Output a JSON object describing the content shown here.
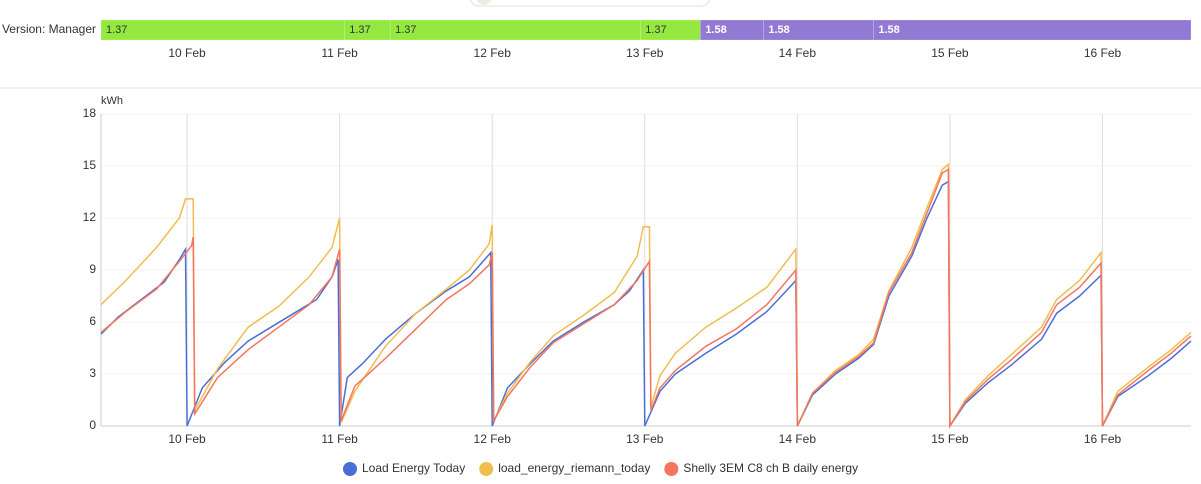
{
  "timeline": {
    "label": "Version: Manager",
    "colors": {
      "1.37": "#95e83f",
      "1.58": "#9279d3"
    },
    "segments": [
      {
        "label": "1.37",
        "start": 9.436,
        "end": 11.03
      },
      {
        "label": "1.37",
        "start": 11.03,
        "end": 11.331
      },
      {
        "label": "1.37",
        "start": 11.331,
        "end": 12.97
      },
      {
        "label": "1.37",
        "start": 12.97,
        "end": 13.364
      },
      {
        "label": "1.58",
        "start": 13.364,
        "end": 13.777
      },
      {
        "label": "1.58",
        "start": 13.777,
        "end": 14.498
      },
      {
        "label": "1.58",
        "start": 14.498,
        "end": 16.58
      }
    ]
  },
  "chart_data": {
    "type": "line",
    "y_label": "kWh",
    "xlim": [
      9.436,
      16.58
    ],
    "ylim": [
      0,
      18
    ],
    "yticks": [
      0,
      3,
      6,
      9,
      12,
      15,
      18
    ],
    "xticks": [
      {
        "value": 10,
        "label": "10 Feb"
      },
      {
        "value": 11,
        "label": "11 Feb"
      },
      {
        "value": 12,
        "label": "12 Feb"
      },
      {
        "value": 13,
        "label": "13 Feb"
      },
      {
        "value": 14,
        "label": "14 Feb"
      },
      {
        "value": 15,
        "label": "15 Feb"
      },
      {
        "value": 16,
        "label": "16 Feb"
      }
    ],
    "grid": true,
    "legend": "bottom",
    "series": [
      {
        "name": "Load Energy Today",
        "color": "#4a6ed6",
        "x": [
          9.436,
          9.55,
          9.7,
          9.85,
          9.95,
          9.99,
          10.0,
          10.1,
          10.25,
          10.4,
          10.55,
          10.7,
          10.85,
          10.95,
          10.99,
          11.0,
          11.05,
          11.15,
          11.3,
          11.5,
          11.7,
          11.85,
          11.99,
          12.0,
          12.1,
          12.25,
          12.4,
          12.6,
          12.8,
          12.9,
          12.99,
          13.0,
          13.1,
          13.2,
          13.4,
          13.6,
          13.8,
          13.95,
          13.99,
          14.0,
          14.1,
          14.25,
          14.4,
          14.5,
          14.6,
          14.75,
          14.85,
          14.95,
          14.99,
          15.0,
          15.1,
          15.25,
          15.4,
          15.6,
          15.7,
          15.85,
          15.99,
          16.0,
          16.1,
          16.3,
          16.45,
          16.58
        ],
        "values": [
          5.3,
          6.3,
          7.3,
          8.3,
          9.6,
          10.2,
          0,
          2.2,
          3.7,
          4.9,
          5.7,
          6.5,
          7.3,
          8.6,
          9.6,
          0,
          2.8,
          3.6,
          5.0,
          6.5,
          7.8,
          8.6,
          10.0,
          0,
          2.2,
          3.6,
          4.9,
          6.0,
          7.0,
          7.8,
          9.0,
          0,
          2.0,
          3.0,
          4.2,
          5.3,
          6.6,
          8.0,
          8.4,
          0,
          1.8,
          3.0,
          3.9,
          4.7,
          7.5,
          9.8,
          12.0,
          13.9,
          14.1,
          0,
          1.3,
          2.5,
          3.5,
          5.0,
          6.5,
          7.5,
          8.7,
          0,
          1.7,
          2.9,
          3.9,
          4.9
        ]
      },
      {
        "name": "load_energy_riemann_today",
        "color": "#f0bd50",
        "x": [
          9.436,
          9.6,
          9.8,
          9.95,
          9.99,
          10.04,
          10.05,
          10.2,
          10.4,
          10.6,
          10.8,
          10.95,
          11.0,
          11.01,
          11.1,
          11.3,
          11.5,
          11.7,
          11.85,
          11.98,
          12.0,
          12.01,
          12.1,
          12.25,
          12.4,
          12.6,
          12.8,
          12.95,
          12.99,
          13.03,
          13.04,
          13.1,
          13.2,
          13.4,
          13.6,
          13.8,
          13.99,
          14.0,
          14.1,
          14.25,
          14.4,
          14.5,
          14.6,
          14.75,
          14.85,
          14.95,
          14.99,
          15.0,
          15.1,
          15.25,
          15.4,
          15.6,
          15.7,
          15.85,
          15.99,
          16.0,
          16.1,
          16.3,
          16.45,
          16.58
        ],
        "values": [
          7.0,
          8.4,
          10.3,
          12.0,
          13.1,
          13.1,
          0.9,
          3.3,
          5.7,
          6.9,
          8.6,
          10.3,
          12.0,
          0.2,
          2.0,
          4.6,
          6.5,
          7.9,
          9.0,
          10.5,
          11.6,
          0.3,
          1.9,
          3.7,
          5.2,
          6.4,
          7.7,
          9.8,
          11.5,
          11.5,
          1.1,
          2.9,
          4.2,
          5.7,
          6.8,
          8.0,
          10.2,
          0,
          1.9,
          3.2,
          4.1,
          5.0,
          7.8,
          10.3,
          12.6,
          14.8,
          15.1,
          0,
          1.5,
          2.9,
          4.1,
          5.7,
          7.3,
          8.4,
          10.0,
          0,
          2.0,
          3.4,
          4.4,
          5.4
        ]
      },
      {
        "name": "Shelly 3EM C8 ch B daily energy",
        "color": "#f47560",
        "x": [
          9.436,
          9.6,
          9.8,
          9.95,
          10.03,
          10.04,
          10.05,
          10.2,
          10.4,
          10.6,
          10.8,
          10.95,
          11.0,
          11.01,
          11.1,
          11.3,
          11.5,
          11.7,
          11.85,
          11.98,
          12.0,
          12.01,
          12.1,
          12.25,
          12.4,
          12.6,
          12.8,
          12.95,
          13.03,
          13.04,
          13.1,
          13.2,
          13.4,
          13.6,
          13.8,
          13.99,
          14.0,
          14.1,
          14.25,
          14.4,
          14.5,
          14.6,
          14.75,
          14.85,
          14.95,
          14.99,
          15.0,
          15.1,
          15.25,
          15.4,
          15.6,
          15.7,
          15.85,
          15.99,
          16.0,
          16.1,
          16.3,
          16.45,
          16.58
        ],
        "values": [
          5.4,
          6.6,
          7.9,
          9.5,
          10.4,
          10.9,
          0.7,
          2.8,
          4.4,
          5.7,
          7.0,
          8.6,
          10.2,
          0.3,
          2.3,
          3.9,
          5.6,
          7.3,
          8.2,
          9.3,
          10.0,
          0.3,
          1.7,
          3.4,
          4.8,
          5.9,
          7.0,
          8.4,
          9.5,
          0.9,
          2.2,
          3.2,
          4.6,
          5.6,
          7.0,
          9.0,
          0,
          1.9,
          3.1,
          4.0,
          4.8,
          7.7,
          10.0,
          12.3,
          14.6,
          14.8,
          0,
          1.4,
          2.7,
          3.8,
          5.4,
          7.0,
          8.0,
          9.4,
          0,
          1.8,
          3.2,
          4.2,
          5.2
        ]
      }
    ]
  }
}
